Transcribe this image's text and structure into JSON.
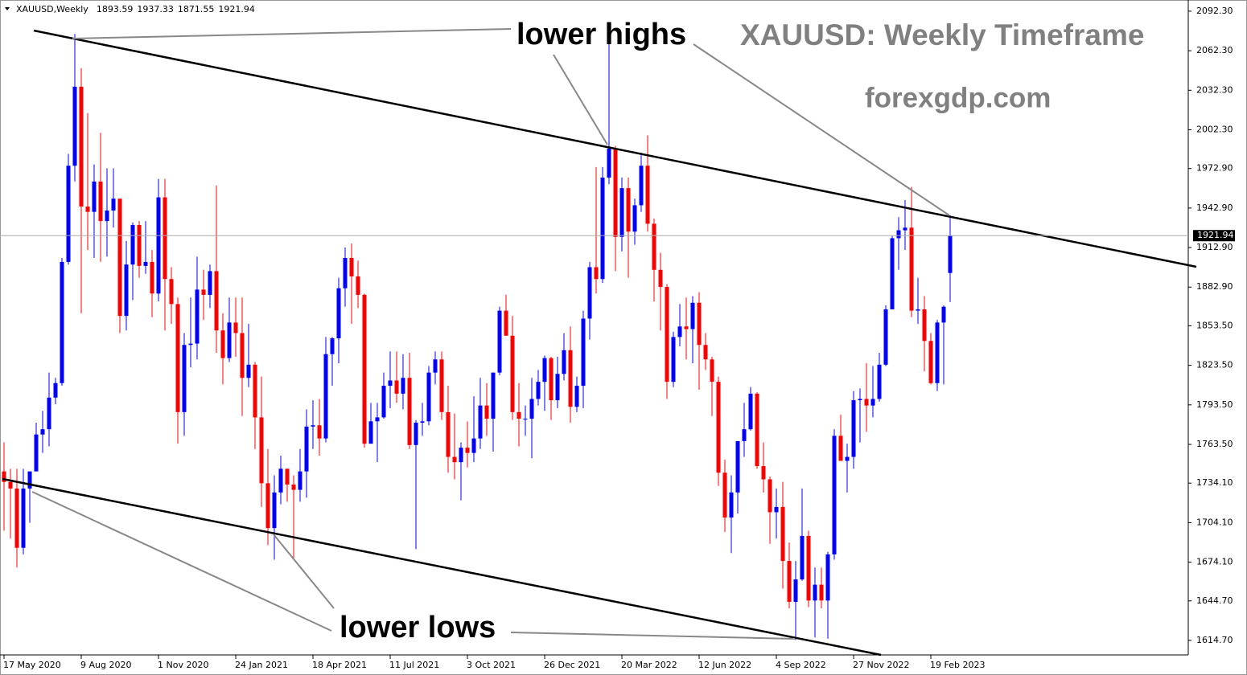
{
  "chart_data": {
    "type": "candlestick",
    "annotations": [
      "lower highs",
      "XAUUSD: Weekly Timeframe",
      "forexgdp.com",
      "lower lows"
    ],
    "categories": [
      "17 May 2020",
      null,
      null,
      null,
      null,
      null,
      null,
      null,
      null,
      null,
      null,
      null,
      "9 Aug 2020",
      null,
      null,
      null,
      null,
      null,
      null,
      null,
      null,
      null,
      null,
      null,
      "1 Nov 2020",
      null,
      null,
      null,
      null,
      null,
      null,
      null,
      null,
      null,
      null,
      null,
      "24 Jan 2021",
      null,
      null,
      null,
      null,
      null,
      null,
      null,
      null,
      null,
      null,
      null,
      "18 Apr 2021",
      null,
      null,
      null,
      null,
      null,
      null,
      null,
      null,
      null,
      null,
      null,
      "11 Jul 2021",
      null,
      null,
      null,
      null,
      null,
      null,
      null,
      null,
      null,
      null,
      null,
      "3 Oct 2021",
      null,
      null,
      null,
      null,
      null,
      null,
      null,
      null,
      null,
      null,
      null,
      "26 Dec 2021",
      null,
      null,
      null,
      null,
      null,
      null,
      null,
      null,
      null,
      null,
      null,
      "20 Mar 2022",
      null,
      null,
      null,
      null,
      null,
      null,
      null,
      null,
      null,
      null,
      null,
      "12 Jun 2022",
      null,
      null,
      null,
      null,
      null,
      null,
      null,
      null,
      null,
      null,
      null,
      "4 Sep 2022",
      null,
      null,
      null,
      null,
      null,
      null,
      null,
      null,
      null,
      null,
      null,
      "27 Nov 2022",
      null,
      null,
      null,
      null,
      null,
      null,
      null,
      null,
      null,
      null,
      null,
      "19 Feb 2023",
      null,
      null,
      null
    ],
    "series": [
      {
        "name": "XAUUSD,Weekly",
        "up_color": "#0000ff",
        "down_color": "#ff0000",
        "values": [
          [
            1743,
            1765,
            1698,
            1735
          ],
          [
            1735,
            1745,
            1692,
            1730
          ],
          [
            1730,
            1745,
            1670,
            1685
          ],
          [
            1685,
            1745,
            1680,
            1730
          ],
          [
            1730,
            1740,
            1704,
            1743
          ],
          [
            1743,
            1780,
            1743,
            1771
          ],
          [
            1771,
            1789,
            1757,
            1775
          ],
          [
            1775,
            1818,
            1762,
            1799
          ],
          [
            1799,
            1814,
            1794,
            1810
          ],
          [
            1810,
            1905,
            1808,
            1902
          ],
          [
            1902,
            1984,
            1900,
            1975
          ],
          [
            1975,
            2075,
            1963,
            2035
          ],
          [
            2035,
            2049,
            1863,
            1944
          ],
          [
            1944,
            2015,
            1911,
            1940
          ],
          [
            1940,
            1976,
            1905,
            1963
          ],
          [
            1963,
            2000,
            1902,
            1933
          ],
          [
            1933,
            1973,
            1906,
            1941
          ],
          [
            1941,
            1973,
            1928,
            1950
          ],
          [
            1950,
            1950,
            1848,
            1861
          ],
          [
            1861,
            1918,
            1850,
            1900
          ],
          [
            1900,
            1932,
            1873,
            1930
          ],
          [
            1930,
            1933,
            1890,
            1899
          ],
          [
            1899,
            1933,
            1893,
            1902
          ],
          [
            1902,
            1911,
            1860,
            1878
          ],
          [
            1878,
            1965,
            1872,
            1951
          ],
          [
            1951,
            1965,
            1850,
            1889
          ],
          [
            1889,
            1898,
            1855,
            1870
          ],
          [
            1870,
            1875,
            1764,
            1788
          ],
          [
            1788,
            1848,
            1770,
            1839
          ],
          [
            1839,
            1875,
            1822,
            1840
          ],
          [
            1840,
            1906,
            1828,
            1881
          ],
          [
            1881,
            1896,
            1858,
            1877
          ],
          [
            1877,
            1900,
            1867,
            1895
          ],
          [
            1895,
            1960,
            1833,
            1850
          ],
          [
            1850,
            1863,
            1809,
            1829
          ],
          [
            1829,
            1875,
            1826,
            1856
          ],
          [
            1856,
            1875,
            1830,
            1848
          ],
          [
            1848,
            1875,
            1785,
            1814
          ],
          [
            1814,
            1855,
            1807,
            1824
          ],
          [
            1824,
            1826,
            1760,
            1784
          ],
          [
            1784,
            1815,
            1716,
            1734
          ],
          [
            1734,
            1760,
            1687,
            1700
          ],
          [
            1700,
            1740,
            1676,
            1727
          ],
          [
            1727,
            1755,
            1718,
            1745
          ],
          [
            1745,
            1745,
            1720,
            1733
          ],
          [
            1733,
            1740,
            1677,
            1729
          ],
          [
            1729,
            1760,
            1720,
            1743
          ],
          [
            1743,
            1790,
            1723,
            1777
          ],
          [
            1777,
            1797,
            1760,
            1778
          ],
          [
            1778,
            1798,
            1755,
            1768
          ],
          [
            1768,
            1845,
            1765,
            1832
          ],
          [
            1832,
            1845,
            1808,
            1844
          ],
          [
            1844,
            1890,
            1825,
            1882
          ],
          [
            1882,
            1913,
            1868,
            1905
          ],
          [
            1905,
            1916,
            1855,
            1891
          ],
          [
            1891,
            1903,
            1867,
            1877
          ],
          [
            1877,
            1878,
            1761,
            1764
          ],
          [
            1764,
            1795,
            1767,
            1781
          ],
          [
            1781,
            1795,
            1750,
            1784
          ],
          [
            1784,
            1818,
            1783,
            1808
          ],
          [
            1808,
            1834,
            1791,
            1812
          ],
          [
            1812,
            1834,
            1795,
            1802
          ],
          [
            1802,
            1832,
            1790,
            1814
          ],
          [
            1814,
            1833,
            1760,
            1763
          ],
          [
            1763,
            1782,
            1684,
            1780
          ],
          [
            1780,
            1795,
            1770,
            1781
          ],
          [
            1781,
            1823,
            1778,
            1818
          ],
          [
            1818,
            1834,
            1809,
            1828
          ],
          [
            1828,
            1834,
            1782,
            1788
          ],
          [
            1788,
            1808,
            1742,
            1754
          ],
          [
            1754,
            1787,
            1737,
            1750
          ],
          [
            1750,
            1765,
            1721,
            1761
          ],
          [
            1761,
            1781,
            1746,
            1757
          ],
          [
            1757,
            1800,
            1750,
            1768
          ],
          [
            1768,
            1814,
            1760,
            1793
          ],
          [
            1793,
            1810,
            1770,
            1783
          ],
          [
            1783,
            1818,
            1758,
            1818
          ],
          [
            1818,
            1868,
            1816,
            1865
          ],
          [
            1865,
            1877,
            1846,
            1846
          ],
          [
            1846,
            1861,
            1782,
            1788
          ],
          [
            1788,
            1810,
            1762,
            1783
          ],
          [
            1783,
            1793,
            1770,
            1783
          ],
          [
            1783,
            1814,
            1753,
            1798
          ],
          [
            1798,
            1820,
            1793,
            1811
          ],
          [
            1811,
            1831,
            1789,
            1829
          ],
          [
            1829,
            1830,
            1782,
            1797
          ],
          [
            1797,
            1830,
            1791,
            1817
          ],
          [
            1817,
            1848,
            1812,
            1835
          ],
          [
            1835,
            1853,
            1780,
            1792
          ],
          [
            1792,
            1815,
            1788,
            1808
          ],
          [
            1808,
            1865,
            1791,
            1859
          ],
          [
            1859,
            1902,
            1843,
            1898
          ],
          [
            1898,
            1974,
            1878,
            1889
          ],
          [
            1889,
            1974,
            1886,
            1966
          ],
          [
            1966,
            2070,
            1961,
            1988
          ],
          [
            1988,
            1990,
            1895,
            1921
          ],
          [
            1921,
            1966,
            1910,
            1958
          ],
          [
            1958,
            1966,
            1890,
            1925
          ],
          [
            1925,
            1950,
            1915,
            1945
          ],
          [
            1945,
            1985,
            1940,
            1975
          ],
          [
            1975,
            1998,
            1925,
            1931
          ],
          [
            1931,
            1935,
            1872,
            1896
          ],
          [
            1896,
            1909,
            1850,
            1883
          ],
          [
            1883,
            1885,
            1798,
            1811
          ],
          [
            1811,
            1849,
            1807,
            1845
          ],
          [
            1845,
            1870,
            1838,
            1853
          ],
          [
            1853,
            1875,
            1828,
            1851
          ],
          [
            1851,
            1876,
            1825,
            1871
          ],
          [
            1871,
            1879,
            1805,
            1839
          ],
          [
            1839,
            1848,
            1820,
            1828
          ],
          [
            1828,
            1830,
            1785,
            1811
          ],
          [
            1811,
            1815,
            1732,
            1742
          ],
          [
            1742,
            1752,
            1697,
            1708
          ],
          [
            1708,
            1740,
            1681,
            1727
          ],
          [
            1727,
            1766,
            1711,
            1766
          ],
          [
            1766,
            1795,
            1754,
            1775
          ],
          [
            1775,
            1807,
            1774,
            1802
          ],
          [
            1802,
            1803,
            1745,
            1747
          ],
          [
            1747,
            1765,
            1727,
            1737
          ],
          [
            1737,
            1739,
            1688,
            1712
          ],
          [
            1712,
            1730,
            1692,
            1716
          ],
          [
            1716,
            1735,
            1654,
            1675
          ],
          [
            1675,
            1689,
            1639,
            1644
          ],
          [
            1644,
            1675,
            1615,
            1661
          ],
          [
            1661,
            1730,
            1660,
            1694
          ],
          [
            1694,
            1698,
            1640,
            1645
          ],
          [
            1645,
            1670,
            1617,
            1657
          ],
          [
            1657,
            1670,
            1639,
            1645
          ],
          [
            1645,
            1682,
            1616,
            1680
          ],
          [
            1680,
            1775,
            1676,
            1770
          ],
          [
            1770,
            1786,
            1751,
            1751
          ],
          [
            1751,
            1764,
            1727,
            1754
          ],
          [
            1754,
            1804,
            1745,
            1797
          ],
          [
            1797,
            1806,
            1765,
            1798
          ],
          [
            1798,
            1825,
            1773,
            1793
          ],
          [
            1793,
            1823,
            1784,
            1798
          ],
          [
            1798,
            1833,
            1796,
            1824
          ],
          [
            1824,
            1869,
            1823,
            1866
          ],
          [
            1866,
            1922,
            1867,
            1920
          ],
          [
            1920,
            1936,
            1896,
            1926
          ],
          [
            1926,
            1949,
            1911,
            1928
          ],
          [
            1928,
            1959,
            1860,
            1865
          ],
          [
            1865,
            1890,
            1855,
            1866
          ],
          [
            1866,
            1876,
            1819,
            1842
          ],
          [
            1842,
            1848,
            1809,
            1810
          ],
          [
            1810,
            1858,
            1804,
            1856
          ],
          [
            1856,
            1869,
            1809,
            1868
          ],
          [
            1893.59,
            1937.33,
            1871.55,
            1921.94
          ]
        ]
      }
    ],
    "ylim": [
      1603.7,
      2100.8
    ],
    "yticks": [
      {
        "value": 2092.3,
        "label": "2092.30"
      },
      {
        "value": 2062.3,
        "label": "2062.30"
      },
      {
        "value": 2032.3,
        "label": "2032.30"
      },
      {
        "value": 2002.3,
        "label": "2002.30"
      },
      {
        "value": 1972.9,
        "label": "1972.90"
      },
      {
        "value": 1942.9,
        "label": "1942.90"
      },
      {
        "value": 1912.9,
        "label": "1912.90"
      },
      {
        "value": 1882.9,
        "label": "1882.90"
      },
      {
        "value": 1853.5,
        "label": "1853.50"
      },
      {
        "value": 1823.5,
        "label": "1823.50"
      },
      {
        "value": 1793.5,
        "label": "1793.50"
      },
      {
        "value": 1763.5,
        "label": "1763.50"
      },
      {
        "value": 1734.1,
        "label": "1734.10"
      },
      {
        "value": 1704.1,
        "label": "1704.10"
      },
      {
        "value": 1674.1,
        "label": "1674.10"
      },
      {
        "value": 1644.7,
        "label": "1644.70"
      },
      {
        "value": 1614.7,
        "label": "1614.70"
      }
    ],
    "grid": false
  }
}
